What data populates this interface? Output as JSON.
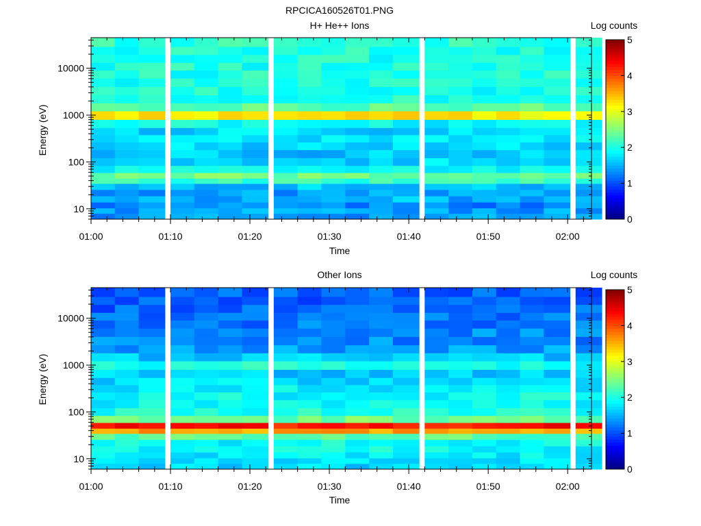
{
  "figure": {
    "title": "RPCICA160526T01.PNG"
  },
  "colors": {
    "axis": "#000000",
    "colormap": [
      "#00007f",
      "#0000ff",
      "#007fff",
      "#00ffff",
      "#7fff7f",
      "#ffff00",
      "#ff7f00",
      "#ff0000",
      "#7f0000"
    ]
  },
  "chart_data": [
    {
      "type": "heatmap",
      "title": "H+ He++ Ions",
      "xlabel": "Time",
      "ylabel": "Energy (eV)",
      "x_ticks": [
        "01:00",
        "01:10",
        "01:20",
        "01:30",
        "01:40",
        "01:50",
        "02:00"
      ],
      "y_ticks": [
        "10",
        "100",
        "1000",
        "10000"
      ],
      "y_scale": "log",
      "ylim": [
        6,
        45000
      ],
      "xlim": [
        "01:00",
        "02:03"
      ],
      "time_bins": [
        "01:00",
        "01:03",
        "01:06",
        "01:10",
        "01:13",
        "01:16",
        "01:19",
        "01:23",
        "01:26",
        "01:29",
        "01:32",
        "01:35",
        "01:38",
        "01:42",
        "01:45",
        "01:48",
        "01:51",
        "01:54",
        "01:57",
        "02:01"
      ],
      "energy_bins_eV": [
        7,
        9,
        12,
        16,
        22,
        30,
        40,
        50,
        70,
        100,
        150,
        220,
        320,
        450,
        650,
        1000,
        1500,
        2200,
        3300,
        5000,
        7500,
        11000,
        16000,
        24000,
        35000
      ],
      "log_counts_profile": [
        1.4,
        1.4,
        1.3,
        1.5,
        1.4,
        1.6,
        2.1,
        2.4,
        1.9,
        1.7,
        1.6,
        1.7,
        1.8,
        1.7,
        1.9,
        3.2,
        2.3,
        2.0,
        2.0,
        2.0,
        2.0,
        2.0,
        2.0,
        2.0,
        2.1
      ],
      "colorbar": {
        "label": "Log counts",
        "ticks": [
          "0",
          "1",
          "2",
          "3",
          "4",
          "5"
        ],
        "range": [
          0,
          5
        ]
      }
    },
    {
      "type": "heatmap",
      "title": "Other Ions",
      "xlabel": "Time",
      "ylabel": "Energy (eV)",
      "x_ticks": [
        "01:00",
        "01:10",
        "01:20",
        "01:30",
        "01:40",
        "01:50",
        "02:00"
      ],
      "y_ticks": [
        "10",
        "100",
        "1000",
        "10000"
      ],
      "y_scale": "log",
      "ylim": [
        6,
        45000
      ],
      "xlim": [
        "01:00",
        "02:03"
      ],
      "time_bins": [
        "01:00",
        "01:03",
        "01:06",
        "01:10",
        "01:13",
        "01:16",
        "01:19",
        "01:23",
        "01:26",
        "01:29",
        "01:32",
        "01:35",
        "01:38",
        "01:42",
        "01:45",
        "01:48",
        "01:51",
        "01:54",
        "01:57",
        "02:01"
      ],
      "energy_bins_eV": [
        7,
        9,
        12,
        16,
        22,
        30,
        40,
        50,
        70,
        100,
        150,
        220,
        320,
        450,
        650,
        1000,
        1500,
        2200,
        3300,
        5000,
        7500,
        11000,
        16000,
        24000,
        35000
      ],
      "log_counts_profile": [
        1.7,
        1.8,
        1.8,
        1.9,
        1.9,
        2.3,
        3.6,
        4.3,
        2.4,
        2.0,
        1.9,
        1.9,
        1.8,
        1.7,
        1.6,
        2.0,
        1.6,
        1.4,
        1.3,
        1.3,
        1.2,
        1.2,
        1.1,
        1.1,
        1.1
      ],
      "colorbar": {
        "label": "Log counts",
        "ticks": [
          "0",
          "1",
          "2",
          "3",
          "4",
          "5"
        ],
        "range": [
          0,
          5
        ]
      }
    }
  ]
}
